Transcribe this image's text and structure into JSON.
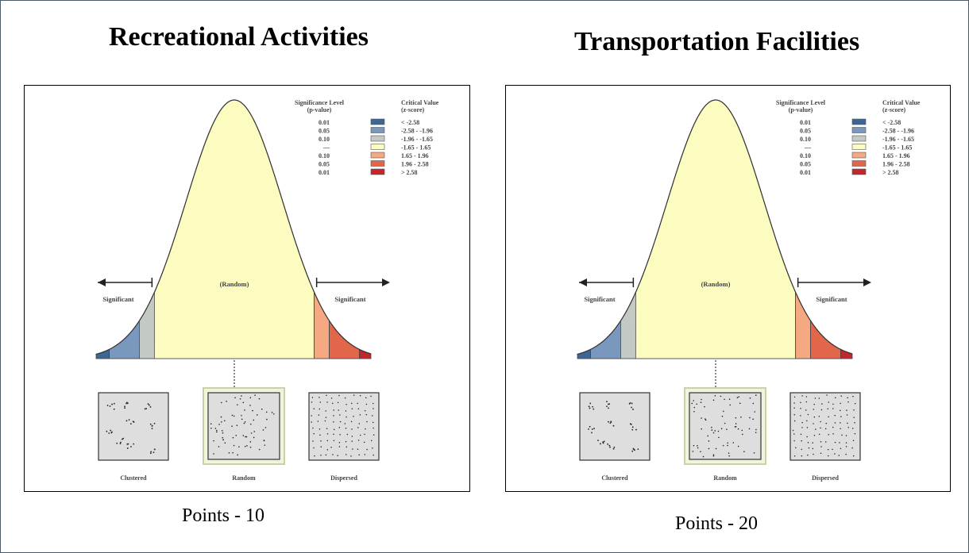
{
  "panels": [
    {
      "title": "Recreational Activities",
      "caption": "Points - 10",
      "diagram": {
        "center_label": "(Random)",
        "left_label": "Significant",
        "right_label": "Significant",
        "legend_header_p": [
          "Significance Level",
          "(p-value)"
        ],
        "legend_header_z": [
          "Critical Value",
          "(z-score)"
        ],
        "legend_rows": [
          {
            "p": "0.01",
            "z": "< -2.58",
            "color": "#3e6694"
          },
          {
            "p": "0.05",
            "z": "-2.58 - -1.96",
            "color": "#7a98bd"
          },
          {
            "p": "0.10",
            "z": "-1.96 - -1.65",
            "color": "#c3cac3"
          },
          {
            "p": "—",
            "z": "-1.65 - 1.65",
            "color": "#fcfbc0"
          },
          {
            "p": "0.10",
            "z": "1.65 - 1.96",
            "color": "#f5a982"
          },
          {
            "p": "0.05",
            "z": "1.96 - 2.58",
            "color": "#e2674a"
          },
          {
            "p": "0.01",
            "z": "> 2.58",
            "color": "#c1272d"
          }
        ],
        "patterns": [
          "Clustered",
          "Random",
          "Dispersed"
        ]
      }
    },
    {
      "title": "Transportation Facilities",
      "caption": "Points - 20",
      "diagram": {
        "center_label": "(Random)",
        "left_label": "Significant",
        "right_label": "Significant",
        "legend_header_p": [
          "Significance Level",
          "(p-value)"
        ],
        "legend_header_z": [
          "Critical Value",
          "(z-score)"
        ],
        "legend_rows": [
          {
            "p": "0.01",
            "z": "< -2.58",
            "color": "#3e6694"
          },
          {
            "p": "0.05",
            "z": "-2.58 - -1.96",
            "color": "#7a98bd"
          },
          {
            "p": "0.10",
            "z": "-1.96 - -1.65",
            "color": "#c3cac3"
          },
          {
            "p": "—",
            "z": "-1.65 - 1.65",
            "color": "#fcfbc0"
          },
          {
            "p": "0.10",
            "z": "1.65 - 1.96",
            "color": "#f5a982"
          },
          {
            "p": "0.05",
            "z": "1.96 - 2.58",
            "color": "#e2674a"
          },
          {
            "p": "0.01",
            "z": "> 2.58",
            "color": "#c1272d"
          }
        ],
        "patterns": [
          "Clustered",
          "Random",
          "Dispersed"
        ]
      }
    }
  ]
}
